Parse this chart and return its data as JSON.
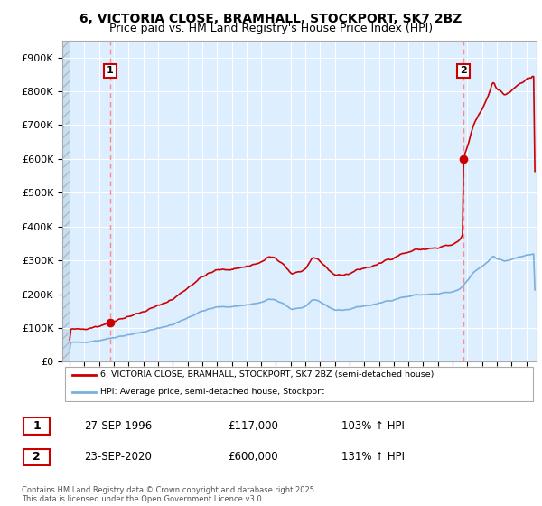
{
  "title1": "6, VICTORIA CLOSE, BRAMHALL, STOCKPORT, SK7 2BZ",
  "title2": "Price paid vs. HM Land Registry's House Price Index (HPI)",
  "hpi_label": "HPI: Average price, semi-detached house, Stockport",
  "property_label": "6, VICTORIA CLOSE, BRAMHALL, STOCKPORT, SK7 2BZ (semi-detached house)",
  "footnote": "Contains HM Land Registry data © Crown copyright and database right 2025.\nThis data is licensed under the Open Government Licence v3.0.",
  "transaction1": {
    "num": "1",
    "date": "27-SEP-1996",
    "price": "£117,000",
    "hpi": "103% ↑ HPI"
  },
  "transaction2": {
    "num": "2",
    "date": "23-SEP-2020",
    "price": "£600,000",
    "hpi": "131% ↑ HPI"
  },
  "sale1_year": 1996.75,
  "sale1_price": 117000,
  "sale2_year": 2020.73,
  "sale2_price": 600000,
  "hpi_color": "#7aafdd",
  "property_color": "#cc0000",
  "dashed_color": "#ff8888",
  "ylim": [
    0,
    950000
  ],
  "yticks": [
    0,
    100000,
    200000,
    300000,
    400000,
    500000,
    600000,
    700000,
    800000,
    900000
  ],
  "ytick_labels": [
    "£0",
    "£100K",
    "£200K",
    "£300K",
    "£400K",
    "£500K",
    "£600K",
    "£700K",
    "£800K",
    "£900K"
  ],
  "xlim_start": 1993.5,
  "xlim_end": 2025.7,
  "xtick_start": 1994,
  "xtick_end": 2025,
  "xtick_step": 1,
  "plot_bg_color": "#ddeeff",
  "grid_color": "#ffffff",
  "hatch_color": "#bbccdd"
}
